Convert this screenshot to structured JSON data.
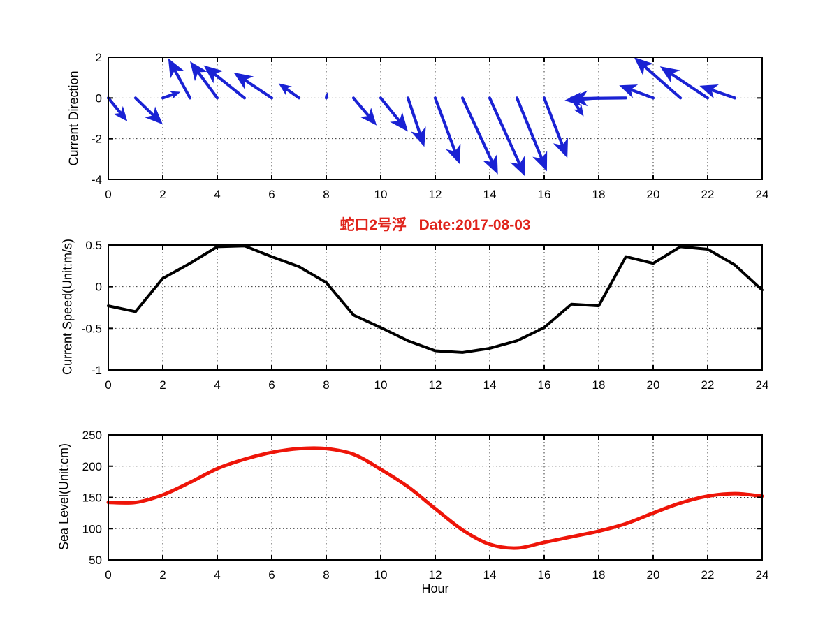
{
  "figure": {
    "background": "#ffffff"
  },
  "colors": {
    "quiver_blue": "#1a22d4",
    "speed_black": "#000000",
    "sea_red": "#ee1509",
    "title_red": "#e0241c",
    "grid": "#333333",
    "axis": "#000000"
  },
  "title": {
    "text": "蛇口2号浮   Date:2017-08-03"
  },
  "chart_data": [
    {
      "type": "quiver",
      "name": "current-direction",
      "ylabel": "Current Direction",
      "xlim": [
        0,
        24
      ],
      "ylim": [
        -4,
        2
      ],
      "xticks": [
        0,
        2,
        4,
        6,
        8,
        10,
        12,
        14,
        16,
        18,
        20,
        22,
        24
      ],
      "yticks": [
        2,
        0,
        -2,
        -4
      ],
      "grid": true,
      "legend": "none",
      "x": [
        0,
        1,
        2,
        3,
        4,
        5,
        6,
        7,
        8,
        9,
        10,
        11,
        12,
        13,
        14,
        15,
        16,
        17,
        18,
        19,
        20,
        21,
        22,
        23
      ],
      "u": [
        0.7,
        1.0,
        0.65,
        -0.8,
        -1.0,
        -1.5,
        -1.4,
        -0.75,
        0.05,
        0.85,
        1.0,
        0.6,
        0.9,
        1.3,
        1.3,
        1.1,
        0.85,
        0.45,
        -1.25,
        -2.1,
        -1.25,
        -1.7,
        -1.75,
        -1.3
      ],
      "v": [
        -1.15,
        -1.3,
        0.3,
        1.95,
        1.8,
        1.6,
        1.25,
        0.72,
        0.28,
        -1.35,
        -1.65,
        -2.4,
        -3.25,
        -3.75,
        -3.85,
        -3.6,
        -2.95,
        -0.9,
        -0.12,
        -0.03,
        0.62,
        2.0,
        1.55,
        0.6
      ]
    },
    {
      "type": "line",
      "name": "current-speed",
      "title": "蛇口2号浮   Date:2017-08-03",
      "ylabel": "Current Speed(Unit:m/s)",
      "xlim": [
        0,
        24
      ],
      "ylim": [
        -1,
        0.5
      ],
      "xticks": [
        0,
        2,
        4,
        6,
        8,
        10,
        12,
        14,
        16,
        18,
        20,
        22,
        24
      ],
      "yticks": [
        0.5,
        0,
        -0.5,
        -1
      ],
      "grid": true,
      "legend": "none",
      "x": [
        0,
        1,
        2,
        3,
        4,
        5,
        6,
        7,
        8,
        9,
        10,
        11,
        12,
        13,
        14,
        15,
        16,
        17,
        18,
        19,
        20,
        21,
        22,
        23,
        24
      ],
      "y": [
        -0.23,
        -0.3,
        0.1,
        0.28,
        0.48,
        0.49,
        0.36,
        0.24,
        0.05,
        -0.34,
        -0.49,
        -0.65,
        -0.77,
        -0.79,
        -0.74,
        -0.65,
        -0.49,
        -0.21,
        -0.23,
        0.36,
        0.28,
        0.48,
        0.45,
        0.26,
        -0.04
      ]
    },
    {
      "type": "line",
      "name": "sea-level",
      "ylabel": "Sea Level(Unit:cm)",
      "xlabel": "Hour",
      "xlim": [
        0,
        24
      ],
      "ylim": [
        50,
        250
      ],
      "xticks": [
        0,
        2,
        4,
        6,
        8,
        10,
        12,
        14,
        16,
        18,
        20,
        22,
        24
      ],
      "yticks": [
        250,
        200,
        150,
        100,
        50
      ],
      "grid": true,
      "legend": "none",
      "x": [
        0,
        1,
        2,
        3,
        4,
        5,
        6,
        7,
        8,
        9,
        10,
        11,
        12,
        13,
        14,
        15,
        16,
        17,
        18,
        19,
        20,
        21,
        22,
        23,
        24
      ],
      "y": [
        142,
        142,
        154,
        174,
        196,
        211,
        222,
        228,
        228,
        219,
        195,
        167,
        132,
        98,
        75,
        69,
        78,
        87,
        96,
        108,
        125,
        141,
        152,
        156,
        152
      ]
    }
  ]
}
